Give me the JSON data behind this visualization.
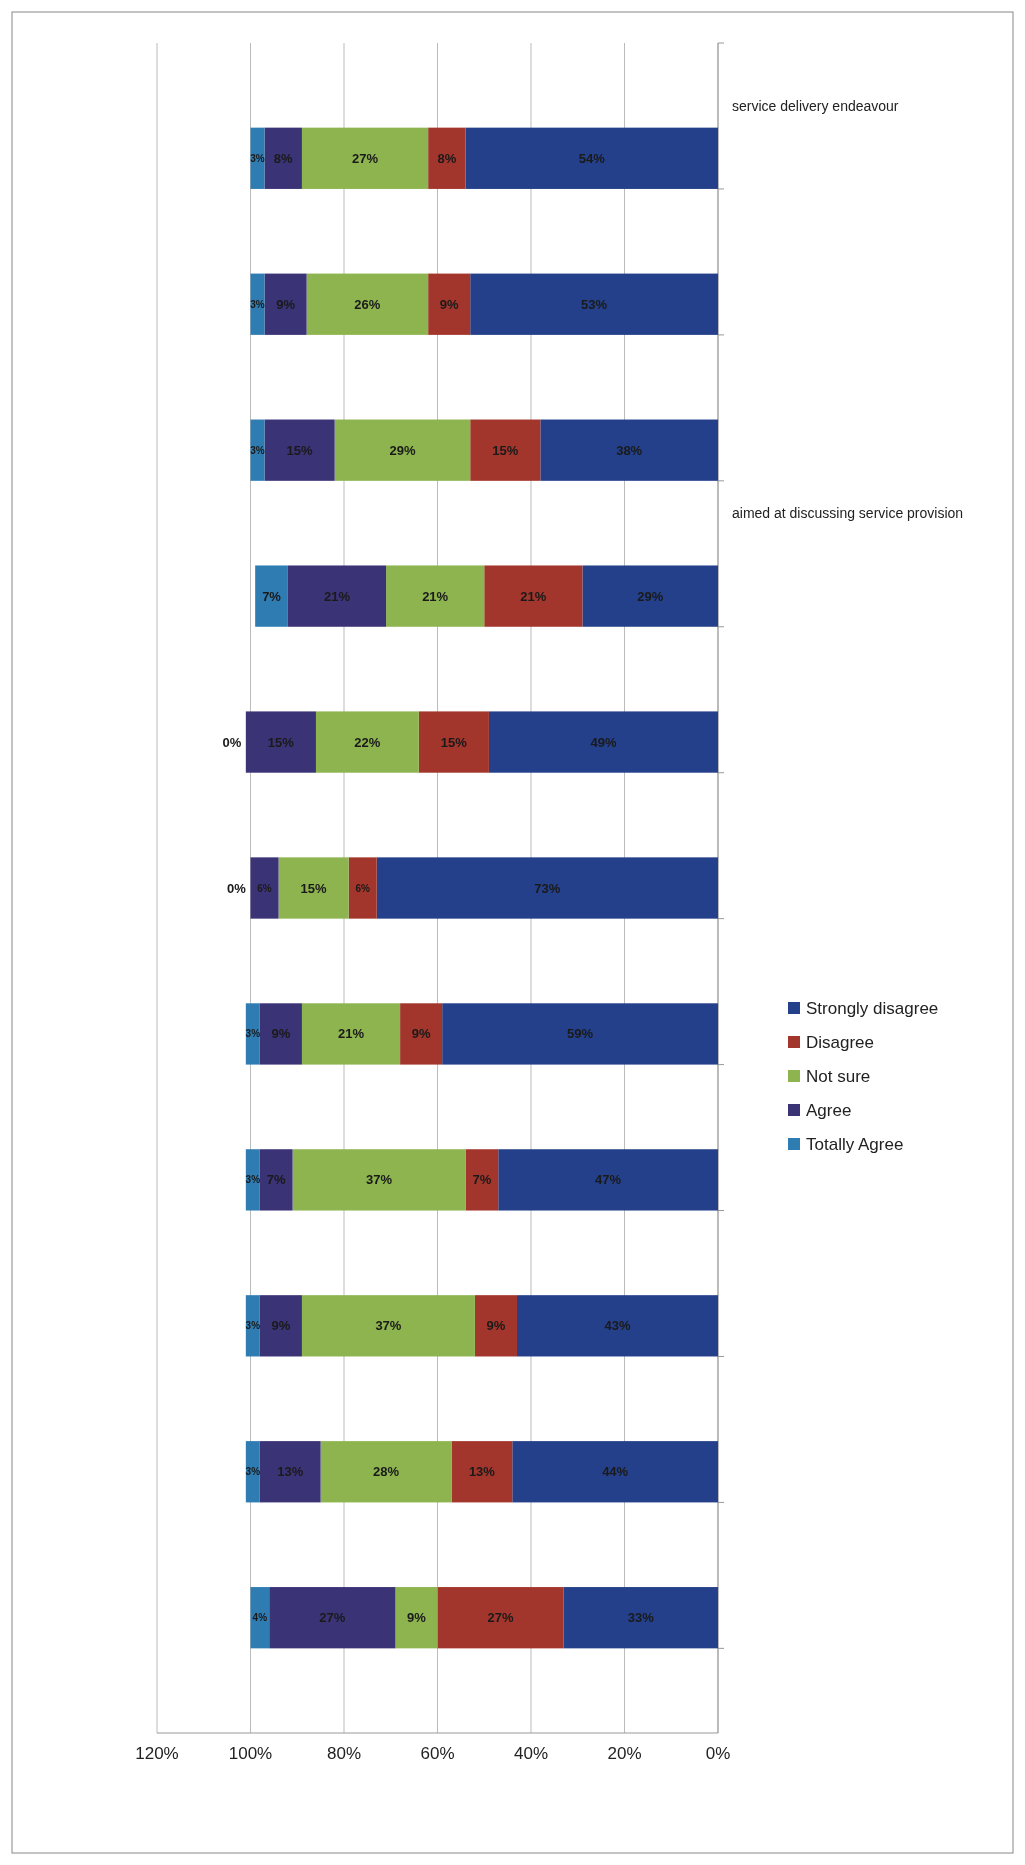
{
  "chart_data": {
    "type": "bar",
    "stacked": true,
    "orientation": "horizontal",
    "categories": [
      null,
      null,
      null,
      null,
      null,
      null,
      null,
      null,
      null,
      null,
      null
    ],
    "series": [
      {
        "name": "Strongly disagree",
        "color": "#24408a",
        "values": [
          54,
          53,
          38,
          29,
          49,
          73,
          59,
          47,
          43,
          44,
          33
        ],
        "value_labels": [
          "54%",
          "53%",
          "38%",
          "29%",
          "49%",
          "73%",
          "59%",
          "47%",
          "43%",
          "44%",
          "33%"
        ]
      },
      {
        "name": "Disagree",
        "color": "#a3362c",
        "values": [
          8,
          9,
          15,
          21,
          15,
          6,
          9,
          7,
          9,
          13,
          27
        ],
        "value_labels": [
          "8%",
          "9%",
          "15%",
          "21%",
          "15%",
          "6%",
          "9%",
          "7%",
          "9%",
          "13%",
          "27%"
        ]
      },
      {
        "name": "Not sure",
        "color": "#8db44e",
        "values": [
          27,
          26,
          29,
          21,
          22,
          15,
          21,
          37,
          37,
          28,
          9
        ],
        "value_labels": [
          "27%",
          "26%",
          "29%",
          "21%",
          "22%",
          "15%",
          "21%",
          "37%",
          "37%",
          "28%",
          "9%"
        ]
      },
      {
        "name": "Agree",
        "color": "#3a3375",
        "values": [
          8,
          9,
          15,
          21,
          15,
          6,
          9,
          7,
          9,
          13,
          27
        ],
        "value_labels": [
          "8%",
          "9%",
          "15%",
          "21%",
          "15%",
          "6%",
          "9%",
          "7%",
          "9%",
          "13%",
          "27%"
        ]
      },
      {
        "name": "Totally Agree",
        "color": "#2f7cb3",
        "values": [
          3,
          3,
          3,
          7,
          0,
          0,
          3,
          3,
          3,
          3,
          4
        ],
        "value_labels": [
          "3%",
          "3%",
          "3%",
          "7%",
          "0%",
          "0%",
          "3%",
          "3%",
          "3%",
          "3%",
          "4%"
        ]
      }
    ],
    "xlim": [
      120,
      0
    ],
    "xticks": [
      {
        "value": 120,
        "label": "120%"
      },
      {
        "value": 100,
        "label": "100%"
      },
      {
        "value": 80,
        "label": "80%"
      },
      {
        "value": 60,
        "label": "60%"
      },
      {
        "value": 40,
        "label": "40%"
      },
      {
        "value": 20,
        "label": "20%"
      },
      {
        "value": 0,
        "label": "0%"
      }
    ],
    "grid": "x",
    "legend": "right",
    "annotations": [
      "aimed at discussing service provision",
      "service delivery endeavour"
    ]
  }
}
